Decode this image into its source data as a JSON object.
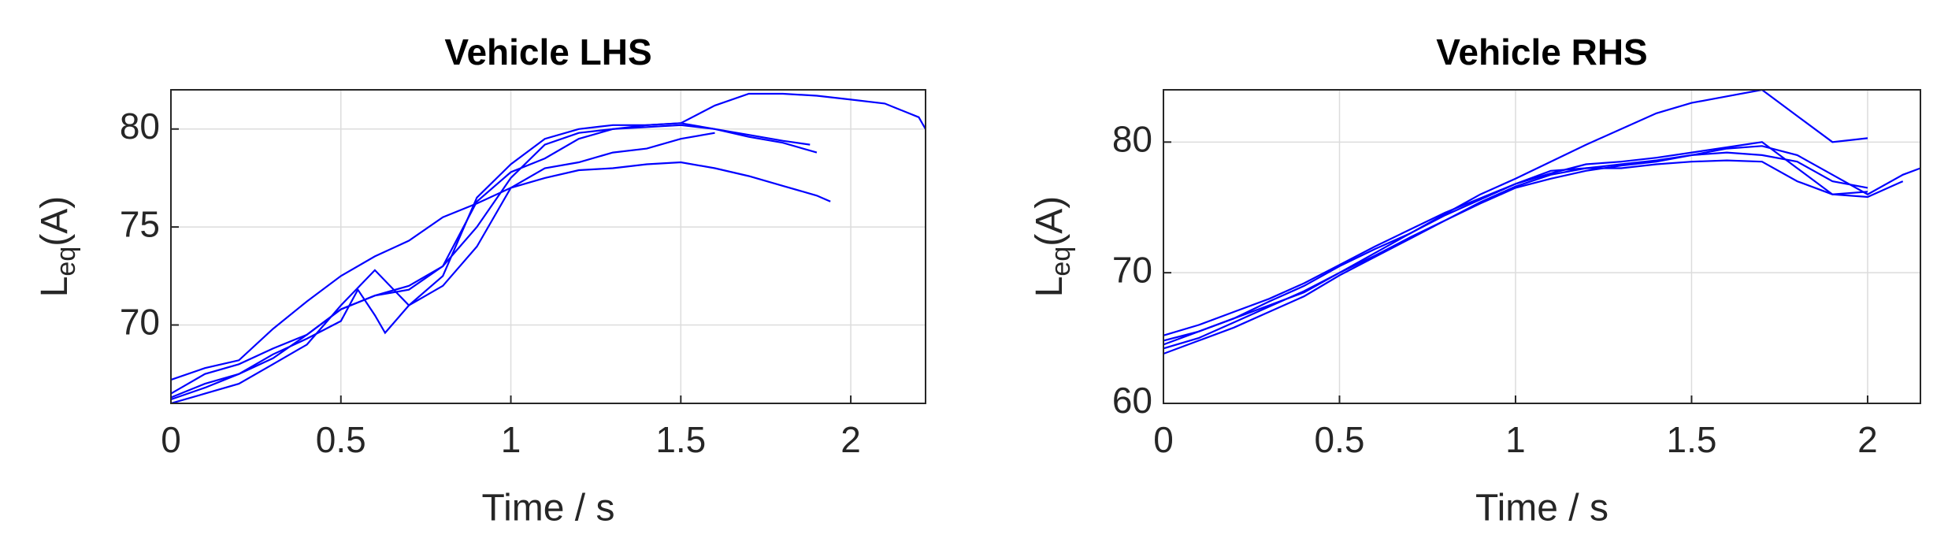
{
  "chart_data": [
    {
      "type": "line",
      "title": "Vehicle LHS",
      "xlabel": "Time / s",
      "ylabel_parts": [
        "L",
        "eq",
        "(A)"
      ],
      "xlim": [
        0,
        2.22
      ],
      "xticks": [
        0,
        0.5,
        1,
        1.5,
        2
      ],
      "ylim": [
        66,
        82
      ],
      "yticks": [
        70,
        75,
        80
      ],
      "grid": true,
      "series": [
        {
          "color": "#0000ff",
          "x": [
            0,
            0.1,
            0.2,
            0.3,
            0.4,
            0.5,
            0.6,
            0.7,
            0.8,
            0.9,
            1.0,
            1.1,
            1.2,
            1.3,
            1.4,
            1.5,
            1.6,
            1.7,
            1.8,
            1.9,
            2.0,
            2.1,
            2.2,
            2.22
          ],
          "values": [
            66.2,
            66.8,
            67.5,
            68.3,
            69.5,
            70.8,
            71.5,
            72.0,
            73.0,
            75.0,
            77.5,
            79.2,
            79.8,
            80.0,
            80.2,
            80.3,
            81.2,
            81.8,
            81.8,
            81.7,
            81.5,
            81.3,
            80.6,
            80.0
          ]
        },
        {
          "color": "#0000ff",
          "x": [
            0,
            0.1,
            0.2,
            0.3,
            0.4,
            0.5,
            0.6,
            0.7,
            0.8,
            0.9,
            1.0,
            1.1,
            1.2,
            1.3,
            1.4,
            1.5,
            1.6,
            1.7,
            1.8,
            1.9,
            1.94
          ],
          "values": [
            67.2,
            67.8,
            68.2,
            69.8,
            71.2,
            72.5,
            73.5,
            74.3,
            75.5,
            76.2,
            77.0,
            77.5,
            77.9,
            78.0,
            78.2,
            78.3,
            78.0,
            77.6,
            77.1,
            76.6,
            76.3
          ]
        },
        {
          "color": "#0000ff",
          "x": [
            0,
            0.1,
            0.2,
            0.3,
            0.4,
            0.5,
            0.6,
            0.7,
            0.8,
            0.9,
            1.0,
            1.1,
            1.2,
            1.3,
            1.4,
            1.5,
            1.6,
            1.7,
            1.8,
            1.9
          ],
          "values": [
            66.0,
            66.5,
            67.0,
            68.0,
            69.0,
            71.0,
            72.8,
            71.0,
            72.5,
            76.5,
            78.2,
            79.5,
            80.0,
            80.2,
            80.2,
            80.3,
            80.0,
            79.6,
            79.3,
            78.8
          ]
        },
        {
          "color": "#0000ff",
          "x": [
            0,
            0.1,
            0.2,
            0.3,
            0.4,
            0.5,
            0.6,
            0.7,
            0.8,
            0.9,
            1.0,
            1.1,
            1.2,
            1.3,
            1.4,
            1.5,
            1.6,
            1.7,
            1.8,
            1.88
          ],
          "values": [
            66.5,
            67.5,
            68.0,
            68.8,
            69.5,
            70.8,
            71.5,
            71.8,
            73.0,
            76.3,
            77.8,
            78.5,
            79.5,
            80.0,
            80.1,
            80.2,
            80.0,
            79.7,
            79.4,
            79.2
          ]
        },
        {
          "color": "#0000ff",
          "x": [
            0,
            0.1,
            0.2,
            0.3,
            0.4,
            0.5,
            0.55,
            0.6,
            0.63,
            0.7,
            0.8,
            0.9,
            1.0,
            1.1,
            1.2,
            1.3,
            1.4,
            1.5,
            1.6
          ],
          "values": [
            66.3,
            67.0,
            67.5,
            68.5,
            69.3,
            70.2,
            71.8,
            70.5,
            69.6,
            71.0,
            72.0,
            74.0,
            77.0,
            78.0,
            78.3,
            78.8,
            79.0,
            79.5,
            79.8
          ]
        }
      ]
    },
    {
      "type": "line",
      "title": "Vehicle RHS",
      "xlabel": "Time / s",
      "ylabel_parts": [
        "L",
        "eq",
        "(A)"
      ],
      "xlim": [
        0,
        2.15
      ],
      "xticks": [
        0,
        0.5,
        1,
        1.5,
        2
      ],
      "ylim": [
        60,
        84
      ],
      "yticks": [
        60,
        70,
        80
      ],
      "grid": true,
      "series": [
        {
          "color": "#0000ff",
          "x": [
            0,
            0.1,
            0.2,
            0.3,
            0.4,
            0.5,
            0.6,
            0.7,
            0.8,
            0.9,
            1.0,
            1.1,
            1.2,
            1.3,
            1.4,
            1.5,
            1.6,
            1.7,
            1.8,
            1.9,
            2.0
          ],
          "values": [
            64.5,
            65.5,
            66.5,
            67.5,
            68.5,
            70.0,
            71.5,
            73.0,
            74.5,
            76.0,
            77.2,
            78.5,
            79.8,
            81.0,
            82.2,
            83.0,
            83.5,
            84.0,
            82.0,
            80.0,
            80.3
          ]
        },
        {
          "color": "#0000ff",
          "x": [
            0,
            0.1,
            0.2,
            0.3,
            0.4,
            0.5,
            0.6,
            0.7,
            0.8,
            0.9,
            1.0,
            1.1,
            1.2,
            1.3,
            1.4,
            1.5,
            1.6,
            1.7,
            1.8,
            1.9,
            2.0,
            2.1,
            2.15
          ],
          "values": [
            63.8,
            64.8,
            65.8,
            67.0,
            68.2,
            69.8,
            71.2,
            72.6,
            74.0,
            75.3,
            76.5,
            77.2,
            77.8,
            78.2,
            78.5,
            79.0,
            79.5,
            79.7,
            79.0,
            77.5,
            76.0,
            77.5,
            78.0
          ]
        },
        {
          "color": "#0000ff",
          "x": [
            0,
            0.1,
            0.2,
            0.3,
            0.4,
            0.5,
            0.6,
            0.7,
            0.8,
            0.9,
            1.0,
            1.1,
            1.2,
            1.3,
            1.4,
            1.5,
            1.6,
            1.7,
            1.8,
            1.9,
            2.0,
            2.1
          ],
          "values": [
            65.2,
            66.0,
            67.0,
            68.0,
            69.2,
            70.6,
            72.0,
            73.3,
            74.6,
            75.7,
            76.8,
            77.6,
            78.3,
            78.5,
            78.8,
            79.2,
            79.6,
            80.0,
            78.0,
            76.0,
            75.8,
            77.0
          ]
        },
        {
          "color": "#0000ff",
          "x": [
            0,
            0.1,
            0.2,
            0.3,
            0.4,
            0.5,
            0.6,
            0.7,
            0.8,
            0.9,
            1.0,
            1.1,
            1.2,
            1.3,
            1.4,
            1.5,
            1.6,
            1.7,
            1.8,
            1.9,
            2.0
          ],
          "values": [
            64.2,
            65.0,
            66.2,
            67.4,
            68.6,
            70.0,
            71.3,
            72.7,
            74.0,
            75.4,
            76.6,
            77.5,
            78.0,
            78.3,
            78.6,
            79.0,
            79.2,
            79.0,
            78.5,
            77.0,
            76.5
          ]
        },
        {
          "color": "#0000ff",
          "x": [
            0,
            0.1,
            0.2,
            0.3,
            0.4,
            0.5,
            0.6,
            0.7,
            0.8,
            0.9,
            1.0,
            1.1,
            1.2,
            1.3,
            1.4,
            1.5,
            1.6,
            1.7,
            1.8,
            1.9,
            2.0
          ],
          "values": [
            64.8,
            65.5,
            66.5,
            67.8,
            69.0,
            70.5,
            71.8,
            73.0,
            74.4,
            75.6,
            76.8,
            77.8,
            78.0,
            78.0,
            78.3,
            78.5,
            78.6,
            78.5,
            77.0,
            76.0,
            76.2
          ]
        }
      ]
    }
  ]
}
